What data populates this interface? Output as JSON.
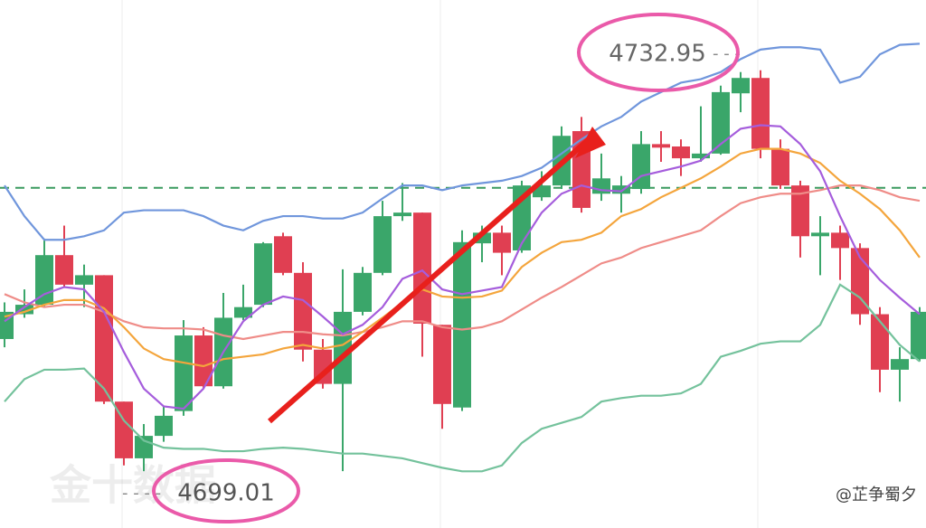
{
  "chart_data": {
    "type": "candlestick",
    "ylim": [
      4694.2,
      4738.9
    ],
    "up_color": "#3aa66a",
    "down_color": "#e03f52",
    "open": [
      4710.2,
      4712.3,
      4713.1,
      4717.3,
      4714.8,
      4715.6,
      4704.9,
      4700.1,
      4702.0,
      4704.1,
      4710.5,
      4706.2,
      4712.0,
      4713.1,
      4718.9,
      4715.8,
      4709.3,
      4706.4,
      4712.5,
      4715.8,
      4720.6,
      4720.9,
      4711.4,
      4704.4,
      4718.3,
      4719.2,
      4717.7,
      4722.2,
      4723.2,
      4727.8,
      4722.5,
      4722.5,
      4722.9,
      4726.7,
      4726.5,
      4725.5,
      4725.9,
      4731.0,
      4732.3,
      4726.3,
      4723.2,
      4718.9,
      4719.2,
      4717.9,
      4712.3,
      4707.6,
      4708.5
    ],
    "high": [
      4713.3,
      4714.4,
      4718.7,
      4719.8,
      4716.5,
      4715.6,
      4704.9,
      4703.0,
      4704.5,
      4711.8,
      4711.2,
      4714.1,
      4714.8,
      4718.4,
      4719.2,
      4716.7,
      4710.2,
      4716.1,
      4716.3,
      4721.9,
      4723.4,
      4720.9,
      4711.4,
      4719.4,
      4719.8,
      4719.8,
      4723.6,
      4724.4,
      4728.2,
      4729.0,
      4725.9,
      4724.0,
      4727.8,
      4727.8,
      4727.1,
      4729.9,
      4731.65,
      4732.8,
      4732.95,
      4727.1,
      4723.6,
      4720.6,
      4719.8,
      4718.3,
      4712.9,
      4709.5,
      4712.9
    ],
    "low": [
      4709.5,
      4712.0,
      4712.9,
      4714.6,
      4712.9,
      4704.7,
      4699.5,
      4699.01,
      4701.5,
      4703.7,
      4706.0,
      4706.0,
      4711.8,
      4712.9,
      4715.6,
      4708.3,
      4706.0,
      4699.01,
      4712.2,
      4715.6,
      4720.2,
      4708.7,
      4702.6,
      4704.1,
      4716.7,
      4715.6,
      4717.5,
      4721.9,
      4722.9,
      4720.9,
      4721.9,
      4720.9,
      4722.5,
      4725.2,
      4724.0,
      4725.2,
      4725.8,
      4729.4,
      4725.5,
      4722.9,
      4717.1,
      4715.6,
      4715.2,
      4711.4,
      4705.7,
      4704.9,
      4708.3
    ],
    "close": [
      4712.5,
      4713.1,
      4717.3,
      4714.8,
      4715.6,
      4704.9,
      4700.1,
      4702.0,
      4703.7,
      4710.5,
      4706.2,
      4712.0,
      4712.9,
      4718.3,
      4715.8,
      4709.3,
      4706.4,
      4712.5,
      4715.8,
      4720.6,
      4720.9,
      4711.5,
      4704.7,
      4718.4,
      4719.2,
      4717.5,
      4723.2,
      4723.2,
      4727.4,
      4721.3,
      4723.8,
      4723.2,
      4726.7,
      4726.4,
      4725.5,
      4725.9,
      4731.1,
      4732.3,
      4726.3,
      4723.2,
      4718.9,
      4719.2,
      4717.9,
      4712.3,
      4707.6,
      4708.5,
      4712.5
    ],
    "series": [
      {
        "color": "#7096dc",
        "values": [
          4723.2,
          4720.6,
          4718.6,
          4718.6,
          4718.9,
          4719.4,
          4720.9,
          4721.1,
          4721.1,
          4721.1,
          4720.6,
          4719.8,
          4719.4,
          4720.2,
          4720.6,
          4720.6,
          4720.4,
          4720.4,
          4720.9,
          4722.1,
          4723.2,
          4723.2,
          4722.8,
          4723.2,
          4723.4,
          4723.6,
          4724.0,
          4724.7,
          4725.9,
          4727.1,
          4728.2,
          4729.0,
          4730.3,
          4731.1,
          4731.9,
          4732.2,
          4732.8,
          4733.9,
          4734.7,
          4734.9,
          4734.9,
          4734.7,
          4731.9,
          4732.4,
          4734.3,
          4735.1,
          4735.2
        ]
      },
      {
        "color": "#74c29c",
        "values": [
          4704.9,
          4706.8,
          4707.6,
          4707.6,
          4707.7,
          4706.0,
          4703.3,
          4701.6,
          4701.0,
          4700.9,
          4700.9,
          4700.7,
          4700.7,
          4700.9,
          4701.0,
          4700.9,
          4700.7,
          4700.5,
          4700.5,
          4700.3,
          4700.1,
          4699.7,
          4699.3,
          4699.0,
          4699.0,
          4699.5,
          4701.4,
          4702.6,
          4703.1,
          4703.6,
          4704.9,
          4705.2,
          4705.4,
          4705.4,
          4705.6,
          4706.4,
          4708.7,
          4709.2,
          4709.8,
          4710.0,
          4710.0,
          4711.4,
          4714.8,
          4713.7,
          4711.7,
          4709.7,
          4708.3
        ]
      },
      {
        "color": "#ef8c88",
        "values": [
          4714.0,
          4713.3,
          4712.9,
          4713.1,
          4713.1,
          4712.5,
          4711.7,
          4711.2,
          4711.1,
          4711.1,
          4711.0,
          4710.5,
          4710.2,
          4710.5,
          4710.8,
          4710.8,
          4710.6,
          4710.5,
          4710.8,
          4711.2,
          4711.7,
          4711.7,
          4711.2,
          4711.0,
          4711.2,
          4711.7,
          4712.7,
          4713.7,
          4714.6,
          4715.6,
          4716.6,
          4717.1,
          4717.9,
          4718.4,
          4718.9,
          4719.4,
          4720.6,
          4721.7,
          4722.2,
          4722.5,
          4722.5,
          4722.8,
          4723.2,
          4723.2,
          4722.8,
          4722.2,
          4721.9
        ]
      },
      {
        "color": "#f4a53c",
        "values": [
          4712.1,
          4712.5,
          4713.1,
          4713.5,
          4713.5,
          4712.8,
          4711.2,
          4709.4,
          4708.5,
          4708.2,
          4707.9,
          4708.5,
          4708.7,
          4708.9,
          4709.4,
          4709.7,
          4709.4,
          4709.7,
          4710.8,
          4712.0,
          4713.3,
          4714.4,
          4713.8,
          4713.7,
          4713.8,
          4714.3,
          4716.3,
          4717.5,
          4718.4,
          4718.6,
          4719.2,
          4720.6,
          4721.2,
          4722.2,
          4723.0,
          4723.8,
          4724.8,
          4725.9,
          4726.3,
          4726.3,
          4725.9,
          4725.1,
          4723.6,
          4722.5,
          4721.2,
          4719.4,
          4717.1
        ]
      },
      {
        "color": "#a55ddc",
        "values": [
          4711.7,
          4712.9,
          4714.0,
          4714.6,
          4714.4,
          4712.5,
          4709.1,
          4706.0,
          4704.5,
          4704.3,
          4706.0,
          4709.1,
          4711.7,
          4713.1,
          4713.8,
          4713.5,
          4712.1,
          4710.6,
          4711.4,
          4712.9,
          4715.3,
          4716.0,
          4714.4,
          4714.0,
          4714.3,
          4714.6,
          4718.3,
          4720.9,
          4722.5,
          4723.2,
          4722.8,
          4722.7,
          4724.0,
          4724.4,
          4724.8,
          4725.3,
          4726.7,
          4728.0,
          4728.3,
          4728.2,
          4726.7,
          4724.4,
          4720.6,
          4717.1,
          4715.2,
          4713.7,
          4712.3
        ]
      }
    ],
    "hline": 4723.0,
    "hline_color": "#3a9a5f",
    "high_label": 4732.95,
    "low_label": 4699.01,
    "watermark": "金十数据",
    "credit": "@芷争蜀夕"
  }
}
